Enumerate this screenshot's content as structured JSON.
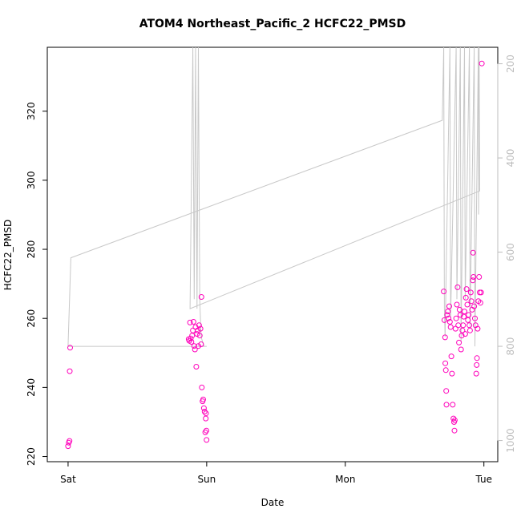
{
  "chart_data": {
    "type": "scatter",
    "title": "ATOM4 Northeast_Pacific_2 HCFC22_PMSD",
    "xlabel": "Date",
    "ylabel": "HCFC22_PMSD",
    "x_ticks": [
      {
        "x": 0.0,
        "label": "Sat"
      },
      {
        "x": 1.0,
        "label": "Sun"
      },
      {
        "x": 2.0,
        "label": "Mon"
      },
      {
        "x": 3.0,
        "label": "Tue"
      }
    ],
    "xlim": [
      -0.15,
      3.1
    ],
    "ylim": [
      218.5,
      338.5
    ],
    "y_ticks": [
      220,
      240,
      260,
      280,
      300,
      320
    ],
    "y2_ticks": [
      200,
      400,
      600,
      800,
      1000
    ],
    "y2lim": [
      1045,
      165
    ],
    "grid": false,
    "colors": {
      "points": "#ff00bb",
      "line": "#c8c8c8",
      "axis": "#000000",
      "axis2": "#bdbdbd"
    },
    "series": [
      {
        "marker": "open-circle",
        "color": "#ff00bb",
        "points": [
          [
            0.0,
            223.0
          ],
          [
            0.005,
            224.0
          ],
          [
            0.01,
            224.5
          ],
          [
            0.012,
            244.7
          ],
          [
            0.015,
            251.5
          ],
          [
            0.87,
            254.0
          ],
          [
            0.875,
            253.5
          ],
          [
            0.88,
            258.8
          ],
          [
            0.885,
            254.2
          ],
          [
            0.89,
            253.2
          ],
          [
            0.895,
            255.0
          ],
          [
            0.9,
            256.5
          ],
          [
            0.905,
            259.0
          ],
          [
            0.91,
            252.0
          ],
          [
            0.915,
            251.0
          ],
          [
            0.92,
            257.5
          ],
          [
            0.925,
            246.0
          ],
          [
            0.93,
            255.5
          ],
          [
            0.935,
            256.5
          ],
          [
            0.94,
            252.0
          ],
          [
            0.945,
            258.0
          ],
          [
            0.95,
            255.0
          ],
          [
            0.955,
            257.0
          ],
          [
            0.96,
            252.5
          ],
          [
            0.962,
            266.2
          ],
          [
            0.965,
            240.0
          ],
          [
            0.97,
            236.0
          ],
          [
            0.975,
            236.5
          ],
          [
            0.98,
            234.0
          ],
          [
            0.985,
            233.0
          ],
          [
            0.99,
            227.0
          ],
          [
            0.993,
            231.0
          ],
          [
            0.995,
            232.5
          ],
          [
            0.998,
            227.5
          ],
          [
            0.999,
            224.8
          ],
          [
            2.71,
            267.8
          ],
          [
            2.715,
            259.5
          ],
          [
            2.72,
            254.5
          ],
          [
            2.722,
            247.0
          ],
          [
            2.725,
            245.0
          ],
          [
            2.728,
            239.0
          ],
          [
            2.73,
            235.0
          ],
          [
            2.735,
            261.0
          ],
          [
            2.74,
            262.0
          ],
          [
            2.745,
            260.0
          ],
          [
            2.75,
            263.5
          ],
          [
            2.755,
            259.0
          ],
          [
            2.76,
            257.5
          ],
          [
            2.765,
            249.0
          ],
          [
            2.77,
            244.0
          ],
          [
            2.775,
            235.0
          ],
          [
            2.78,
            231.0
          ],
          [
            2.785,
            230.0
          ],
          [
            2.788,
            227.5
          ],
          [
            2.79,
            230.5
          ],
          [
            2.795,
            257.0
          ],
          [
            2.8,
            260.0
          ],
          [
            2.805,
            264.0
          ],
          [
            2.81,
            269.0
          ],
          [
            2.815,
            258.0
          ],
          [
            2.82,
            253.0
          ],
          [
            2.825,
            262.5
          ],
          [
            2.83,
            261.0
          ],
          [
            2.835,
            251.0
          ],
          [
            2.84,
            255.0
          ],
          [
            2.845,
            256.5
          ],
          [
            2.85,
            258.0
          ],
          [
            2.855,
            260.5
          ],
          [
            2.86,
            262.0
          ],
          [
            2.865,
            255.5
          ],
          [
            2.87,
            266.0
          ],
          [
            2.875,
            268.5
          ],
          [
            2.88,
            264.0
          ],
          [
            2.885,
            259.5
          ],
          [
            2.89,
            261.0
          ],
          [
            2.895,
            258.0
          ],
          [
            2.9,
            256.5
          ],
          [
            2.905,
            267.5
          ],
          [
            2.91,
            265.0
          ],
          [
            2.915,
            262.5
          ],
          [
            2.92,
            271.0
          ],
          [
            2.922,
            279.0
          ],
          [
            2.925,
            272.0
          ],
          [
            2.93,
            263.5
          ],
          [
            2.935,
            260.0
          ],
          [
            2.94,
            258.0
          ],
          [
            2.945,
            244.0
          ],
          [
            2.948,
            246.5
          ],
          [
            2.95,
            248.5
          ],
          [
            2.955,
            257.0
          ],
          [
            2.96,
            265.0
          ],
          [
            2.965,
            272.0
          ],
          [
            2.97,
            267.5
          ],
          [
            2.975,
            264.5
          ],
          [
            2.98,
            267.5
          ],
          [
            2.985,
            333.8
          ]
        ]
      },
      {
        "marker": "line",
        "axis": "right",
        "color": "#c8c8c8",
        "points": [
          [
            0.0,
            800
          ],
          [
            0.02,
            612
          ],
          [
            2.7,
            320
          ],
          [
            2.71,
            140
          ],
          [
            2.715,
            720
          ],
          [
            2.72,
            780
          ],
          [
            2.755,
            120
          ],
          [
            2.76,
            740
          ],
          [
            2.8,
            130
          ],
          [
            2.805,
            700
          ],
          [
            2.83,
            120
          ],
          [
            2.835,
            790
          ],
          [
            2.86,
            130
          ],
          [
            2.865,
            700
          ],
          [
            2.895,
            120
          ],
          [
            2.9,
            760
          ],
          [
            2.93,
            130
          ],
          [
            2.935,
            800
          ],
          [
            2.96,
            130
          ],
          [
            2.962,
            520
          ],
          [
            2.965,
            150
          ],
          [
            2.97,
            470
          ],
          [
            0.88,
            720
          ],
          [
            0.9,
            130
          ],
          [
            0.91,
            700
          ],
          [
            0.92,
            140
          ],
          [
            0.93,
            720
          ],
          [
            0.94,
            150
          ],
          [
            0.95,
            700
          ],
          [
            0.96,
            780
          ],
          [
            0.98,
            800
          ],
          [
            1.0,
            800
          ],
          [
            0.0,
            800
          ]
        ]
      }
    ]
  }
}
